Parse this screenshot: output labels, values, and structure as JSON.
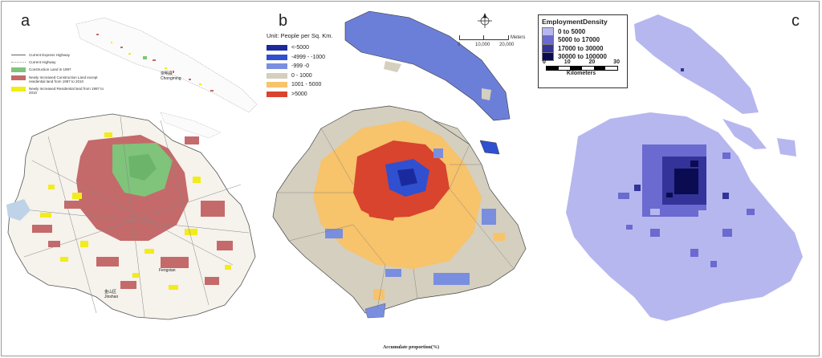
{
  "panels": {
    "a": {
      "label": "a"
    },
    "b": {
      "label": "b"
    },
    "c": {
      "label": "c"
    }
  },
  "panel_a_legend": {
    "express_highway": "Current Express Highway",
    "highway": "Current Highway",
    "construction_1997": "Construction Land in 1997",
    "new_construction": "Newly Increased Construction Land except residential land from 1997 to 2010",
    "new_residential": "Newly Increased Residential land from 1997 to 2010",
    "colors": {
      "construction": "#7fc47a",
      "new_construction": "#c46a6a",
      "residential": "#f2ec1a"
    }
  },
  "panel_a_places": {
    "chongming_cn": "崇明县",
    "chongming": "Chongming",
    "fengxian": "Fengxian",
    "jinshan_cn": "金山区",
    "jinshan": "Jinshan"
  },
  "panel_b_legend": {
    "unit": "Unit: People per Sq. Km.",
    "classes": [
      {
        "label": "<-5000",
        "color": "#1a2a9e"
      },
      {
        "label": "-4999 - -1000",
        "color": "#3050d0"
      },
      {
        "label": "-999 -0",
        "color": "#7a8ee0"
      },
      {
        "label": "0 - 1000",
        "color": "#d4cfbf"
      },
      {
        "label": "1001 - 5000",
        "color": "#f7c36b"
      },
      {
        "label": ">5000",
        "color": "#d8442e"
      }
    ]
  },
  "panel_b_scale": {
    "unit": "Meters",
    "ticks": [
      "0",
      "10,000",
      "20,000"
    ]
  },
  "panel_c_legend": {
    "title": "EmploymentDensity",
    "classes": [
      {
        "label": "0 to 5000",
        "color": "#b7b7ef"
      },
      {
        "label": "5000 to 17000",
        "color": "#6a6ad0"
      },
      {
        "label": "17000 to 30000",
        "color": "#33339a"
      },
      {
        "label": "30000 to 100000",
        "color": "#0b0b52"
      }
    ]
  },
  "panel_c_scale": {
    "ticks": [
      "0",
      "10",
      "20",
      "30"
    ],
    "unit": "Kilometers"
  },
  "footer": "Accumulate proportion(%)"
}
